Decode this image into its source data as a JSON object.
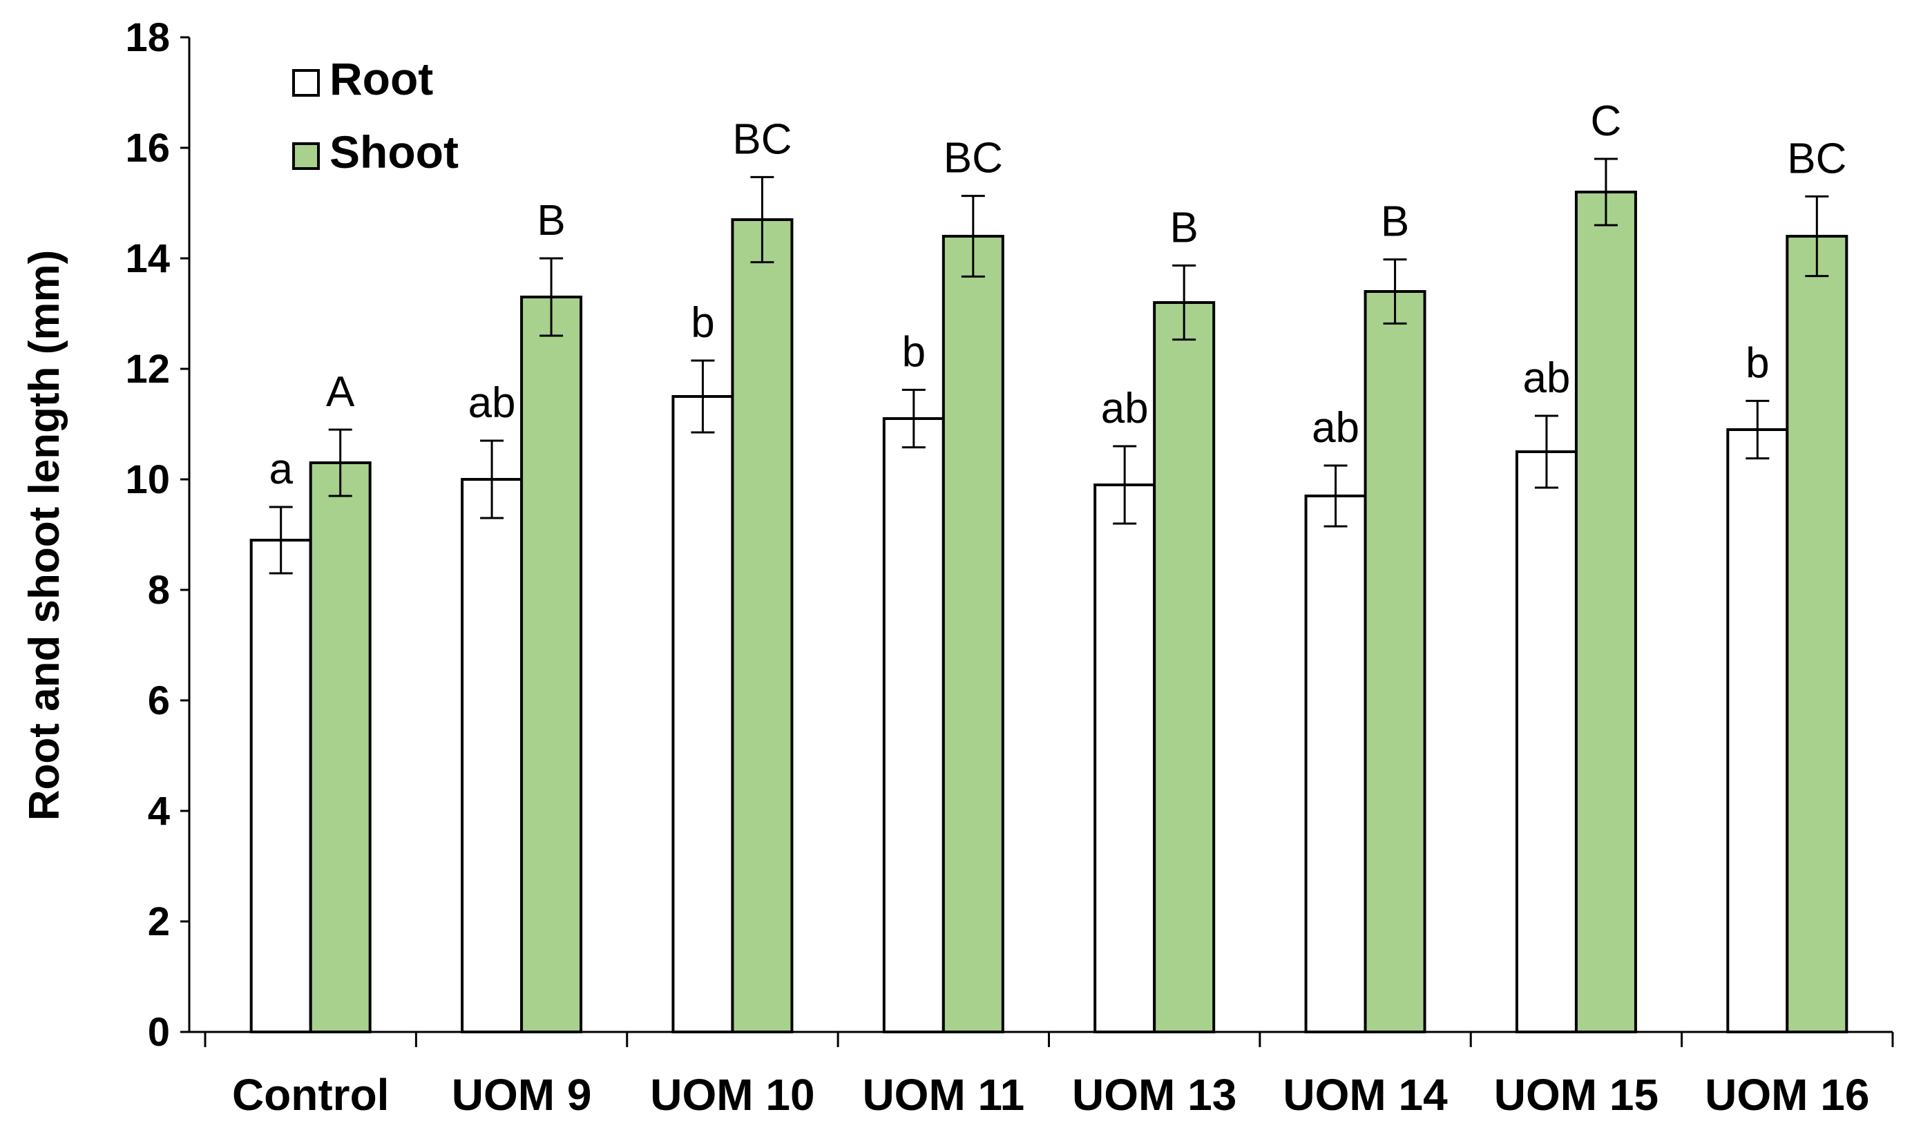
{
  "chart_data": {
    "type": "bar",
    "title": "",
    "xlabel": "",
    "ylabel": "Root and shoot length (mm)",
    "ylim": [
      0,
      18
    ],
    "yticks": [
      0,
      2,
      4,
      6,
      8,
      10,
      12,
      14,
      16,
      18
    ],
    "ytick_labels": [
      "0",
      "2",
      "4",
      "6",
      "8",
      "10",
      "12",
      "14",
      "16",
      "18"
    ],
    "categories": [
      "Control",
      "UOM 9",
      "UOM 10",
      "UOM 11",
      "UOM 13",
      "UOM 14",
      "UOM 15",
      "UOM 16"
    ],
    "grid": false,
    "legend_position": "top-left",
    "series": [
      {
        "name": "Root",
        "color": "#ffffff",
        "values": [
          8.9,
          10.0,
          11.5,
          11.1,
          9.9,
          9.7,
          10.5,
          10.9
        ],
        "errors": [
          0.6,
          0.7,
          0.65,
          0.52,
          0.7,
          0.55,
          0.65,
          0.52
        ],
        "labels": [
          "a",
          "ab",
          "b",
          "b",
          "ab",
          "ab",
          "ab",
          "b"
        ]
      },
      {
        "name": "Shoot",
        "color": "#a9d18e",
        "values": [
          10.3,
          13.3,
          14.7,
          14.4,
          13.2,
          13.4,
          15.2,
          14.4
        ],
        "errors": [
          0.6,
          0.7,
          0.77,
          0.73,
          0.67,
          0.58,
          0.6,
          0.72
        ],
        "labels": [
          "A",
          "B",
          "BC",
          "BC",
          "B",
          "B",
          "C",
          "BC"
        ]
      }
    ]
  }
}
